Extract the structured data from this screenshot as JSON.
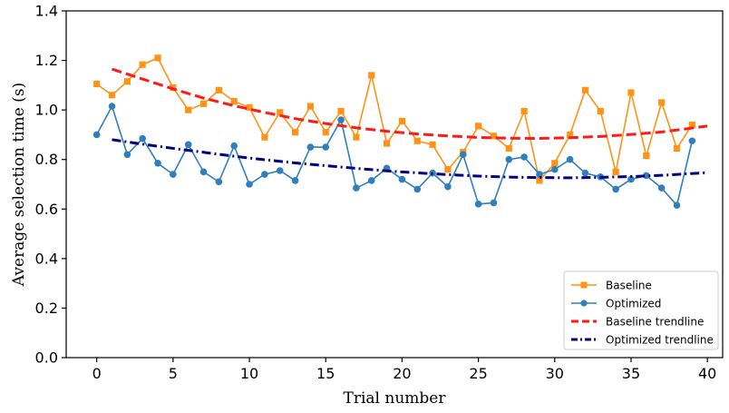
{
  "chart_data": {
    "type": "line",
    "title": "",
    "xlabel": "Trial number",
    "ylabel": "Average selection time (s)",
    "xlim": [
      -2.0,
      41.0
    ],
    "ylim": [
      0.0,
      1.4
    ],
    "xticks": [
      0,
      5,
      10,
      15,
      20,
      25,
      30,
      35,
      40
    ],
    "yticks": [
      0.0,
      0.2,
      0.4,
      0.6,
      0.8,
      1.0,
      1.2,
      1.4
    ],
    "xtick_labels": [
      "0",
      "5",
      "10",
      "15",
      "20",
      "25",
      "30",
      "35",
      "40"
    ],
    "ytick_labels": [
      "0.0",
      "0.2",
      "0.4",
      "0.6",
      "0.8",
      "1.0",
      "1.2",
      "1.4"
    ],
    "grid": false,
    "legend_position": "bottom-right",
    "x": [
      0,
      1,
      2,
      3,
      4,
      5,
      6,
      7,
      8,
      9,
      10,
      11,
      12,
      13,
      14,
      15,
      16,
      17,
      18,
      19,
      20,
      21,
      22,
      23,
      24,
      25,
      26,
      27,
      28,
      29,
      30,
      31,
      32,
      33,
      34,
      35,
      36,
      37,
      38,
      39
    ],
    "series": [
      {
        "name": "Baseline",
        "style": "line-square-markers",
        "color": "#ff9315",
        "values": [
          1.105,
          1.06,
          1.115,
          1.183,
          1.21,
          1.09,
          1.0,
          1.025,
          1.08,
          1.035,
          1.01,
          0.89,
          0.99,
          0.91,
          1.015,
          0.91,
          0.995,
          0.89,
          1.14,
          0.865,
          0.955,
          0.875,
          0.86,
          0.76,
          0.83,
          0.935,
          0.895,
          0.845,
          0.995,
          0.715,
          0.785,
          0.9,
          1.08,
          0.995,
          0.75,
          1.07,
          0.815,
          1.03,
          0.845,
          0.94
        ]
      },
      {
        "name": "Optimized",
        "style": "line-circle-markers",
        "color": "#2f7fbf",
        "values": [
          0.9,
          1.015,
          0.82,
          0.885,
          0.785,
          0.74,
          0.86,
          0.75,
          0.71,
          0.855,
          0.7,
          0.74,
          0.755,
          0.715,
          0.85,
          0.85,
          0.96,
          0.685,
          0.715,
          0.765,
          0.72,
          0.68,
          0.745,
          0.69,
          0.82,
          0.62,
          0.625,
          0.8,
          0.81,
          0.74,
          0.76,
          0.8,
          0.745,
          0.73,
          0.68,
          0.72,
          0.735,
          0.685,
          0.615,
          0.875
        ]
      },
      {
        "name": "Baseline trendline",
        "style": "dashed",
        "color": "#ff1a1a",
        "x": [
          1,
          3,
          5,
          7,
          9,
          11,
          13,
          15,
          17,
          19,
          21,
          23,
          25,
          27,
          29,
          31,
          33,
          35,
          37,
          40
        ],
        "values": [
          1.165,
          1.125,
          1.085,
          1.048,
          1.017,
          0.99,
          0.965,
          0.945,
          0.928,
          0.914,
          0.903,
          0.895,
          0.889,
          0.886,
          0.885,
          0.888,
          0.893,
          0.901,
          0.911,
          0.935
        ]
      },
      {
        "name": "Optimized trendline",
        "style": "dash-dot",
        "color": "#000080",
        "x": [
          1,
          3,
          5,
          7,
          9,
          11,
          13,
          15,
          17,
          19,
          21,
          23,
          25,
          27,
          29,
          31,
          33,
          35,
          37,
          40
        ],
        "values": [
          0.88,
          0.862,
          0.845,
          0.829,
          0.813,
          0.799,
          0.786,
          0.775,
          0.764,
          0.754,
          0.746,
          0.739,
          0.733,
          0.729,
          0.727,
          0.726,
          0.728,
          0.731,
          0.736,
          0.747
        ]
      }
    ]
  }
}
